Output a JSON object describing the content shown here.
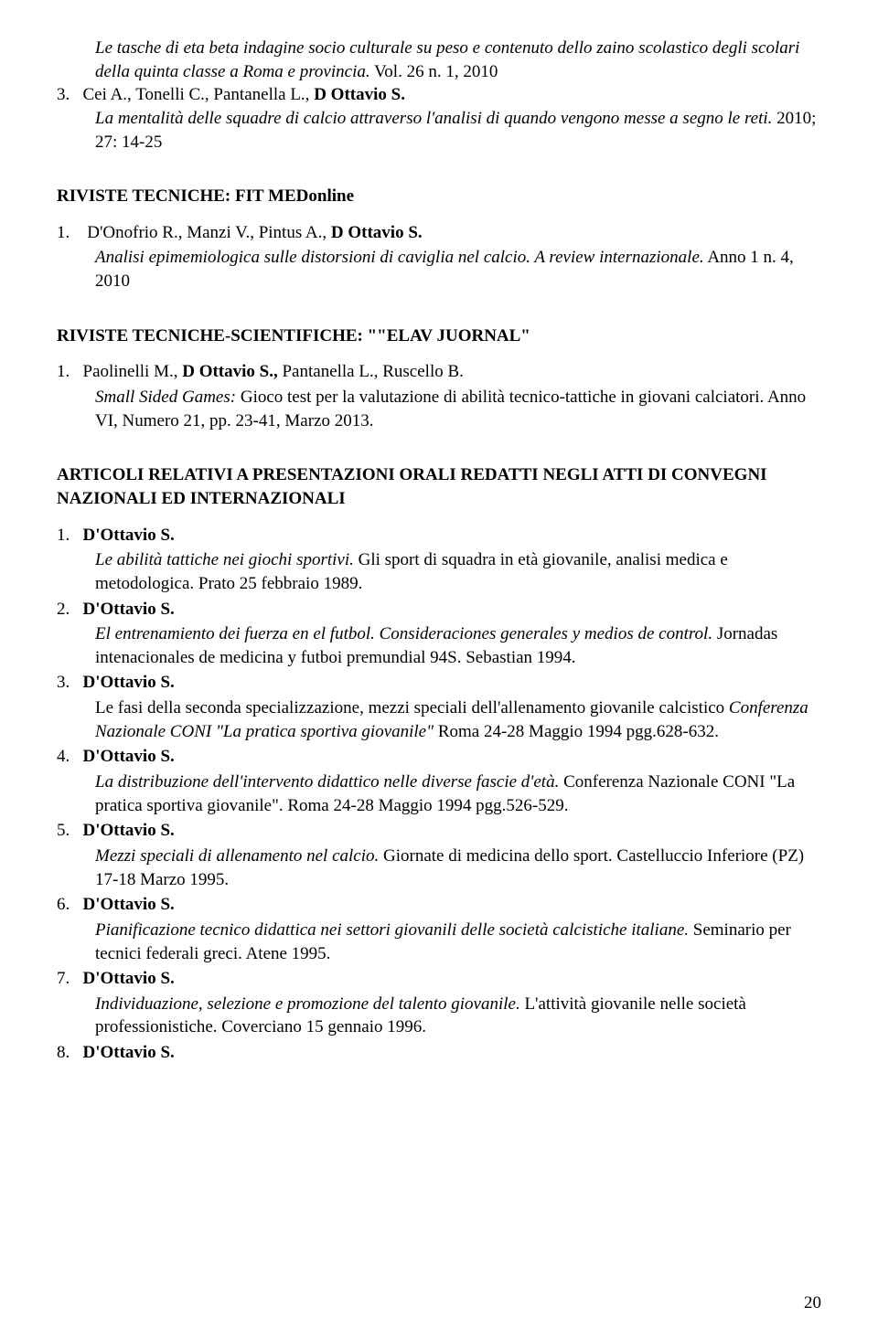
{
  "topFragment": {
    "line1_italic": "Le tasche di eta beta indagine socio culturale su peso e contenuto dello zaino scolastico degli scolari della quinta classe a Roma e provincia.",
    "line1_roman": " Vol. 26 n. 1, 2010",
    "num3_prefix": "3.",
    "num3_authors": "Cei A., Tonelli C., Pantanella L., ",
    "num3_bold": "D Ottavio S.",
    "num3_line2_italic": "La mentalità delle squadre di calcio attraverso l'analisi di quando vengono messe a segno le reti.",
    "num3_line2_roman": " 2010; 27: 14-25"
  },
  "section1_heading": "RIVISTE TECNICHE: FIT MEDonline",
  "section1_item": {
    "num": "1.",
    "authors_pre": "D'Onofrio R.,  Manzi V., Pintus A., ",
    "author_bold": "D Ottavio S.",
    "line2_italic": "Analisi epimemiologica sulle distorsioni di caviglia nel calcio. A review internazionale.",
    "line2_roman": " Anno 1 n. 4, 2010"
  },
  "section2_heading": "RIVISTE TECNICHE-SCIENTIFICHE: \"\"ELAV JUORNAL\"",
  "section2_item": {
    "num": "1.",
    "authors_pre": "Paolinelli M., ",
    "author_bold": "D Ottavio S.,",
    "authors_post": " Pantanella L., Ruscello B.",
    "line2_italic": "Small Sided Games:",
    "line2_roman": " Gioco test per la valutazione di abilità tecnico-tattiche in giovani calciatori. Anno VI, Numero 21, pp. 23-41, Marzo 2013."
  },
  "section3_heading": "ARTICOLI RELATIVI A PRESENTAZIONI ORALI REDATTI NEGLI ATTI DI CONVEGNI NAZIONALI ED INTERNAZIONALI",
  "section3_items": [
    {
      "num": "1.",
      "bold": "D'Ottavio S.",
      "ital": "Le abilità tattiche nei giochi sportivi.",
      "rest": " Gli sport di squadra in età  giovanile, analisi medica e metodologica. Prato 25 febbraio 1989."
    },
    {
      "num": "2.",
      "bold": "D'Ottavio S.",
      "ital": "El entrenamiento dei fuerza en el futbol. Consideraciones generales  y medios de control.",
      "rest": " Jornadas intenacionales de medicina y futboi premundial 94S. Sebastian 1994."
    },
    {
      "num": "3.",
      "bold": "D'Ottavio S.",
      "pre": "Le fasi della seconda specializzazione, mezzi speciali dell'allenamento giovanile calcistico ",
      "ital": "Conferenza Nazionale CONI \"La pratica sportiva giovanile\"",
      "rest": " Roma 24-28 Maggio 1994 pgg.628-632."
    },
    {
      "num": "4.",
      "bold": "D'Ottavio S.",
      "ital": "La distribuzione dell'intervento didattico nelle diverse fascie d'età.",
      "rest": " Conferenza Nazionale CONI \"La pratica sportiva giovanile\". Roma 24-28 Maggio 1994  pgg.526-529."
    },
    {
      "num": "5.",
      "bold": "D'Ottavio S.",
      "ital": "Mezzi speciali di allenamento nel calcio.",
      "rest": " Giornate di medicina dello  sport. Castelluccio Inferiore (PZ) 17-18 Marzo 1995."
    },
    {
      "num": "6.",
      "bold": "D'Ottavio S.",
      "ital": "Pianificazione tecnico didattica nei settori giovanili delle società  calcistiche italiane.",
      "rest": " Seminario per tecnici federali greci. Atene 1995."
    },
    {
      "num": "7.",
      "bold": "D'Ottavio S.",
      "ital": "Individuazione, selezione e promozione del talento giovanile.",
      "rest": " L'attività  giovanile nelle società professionistiche. Coverciano 15 gennaio 1996."
    },
    {
      "num": "8.",
      "bold": "D'Ottavio S."
    }
  ],
  "page_number": "20"
}
